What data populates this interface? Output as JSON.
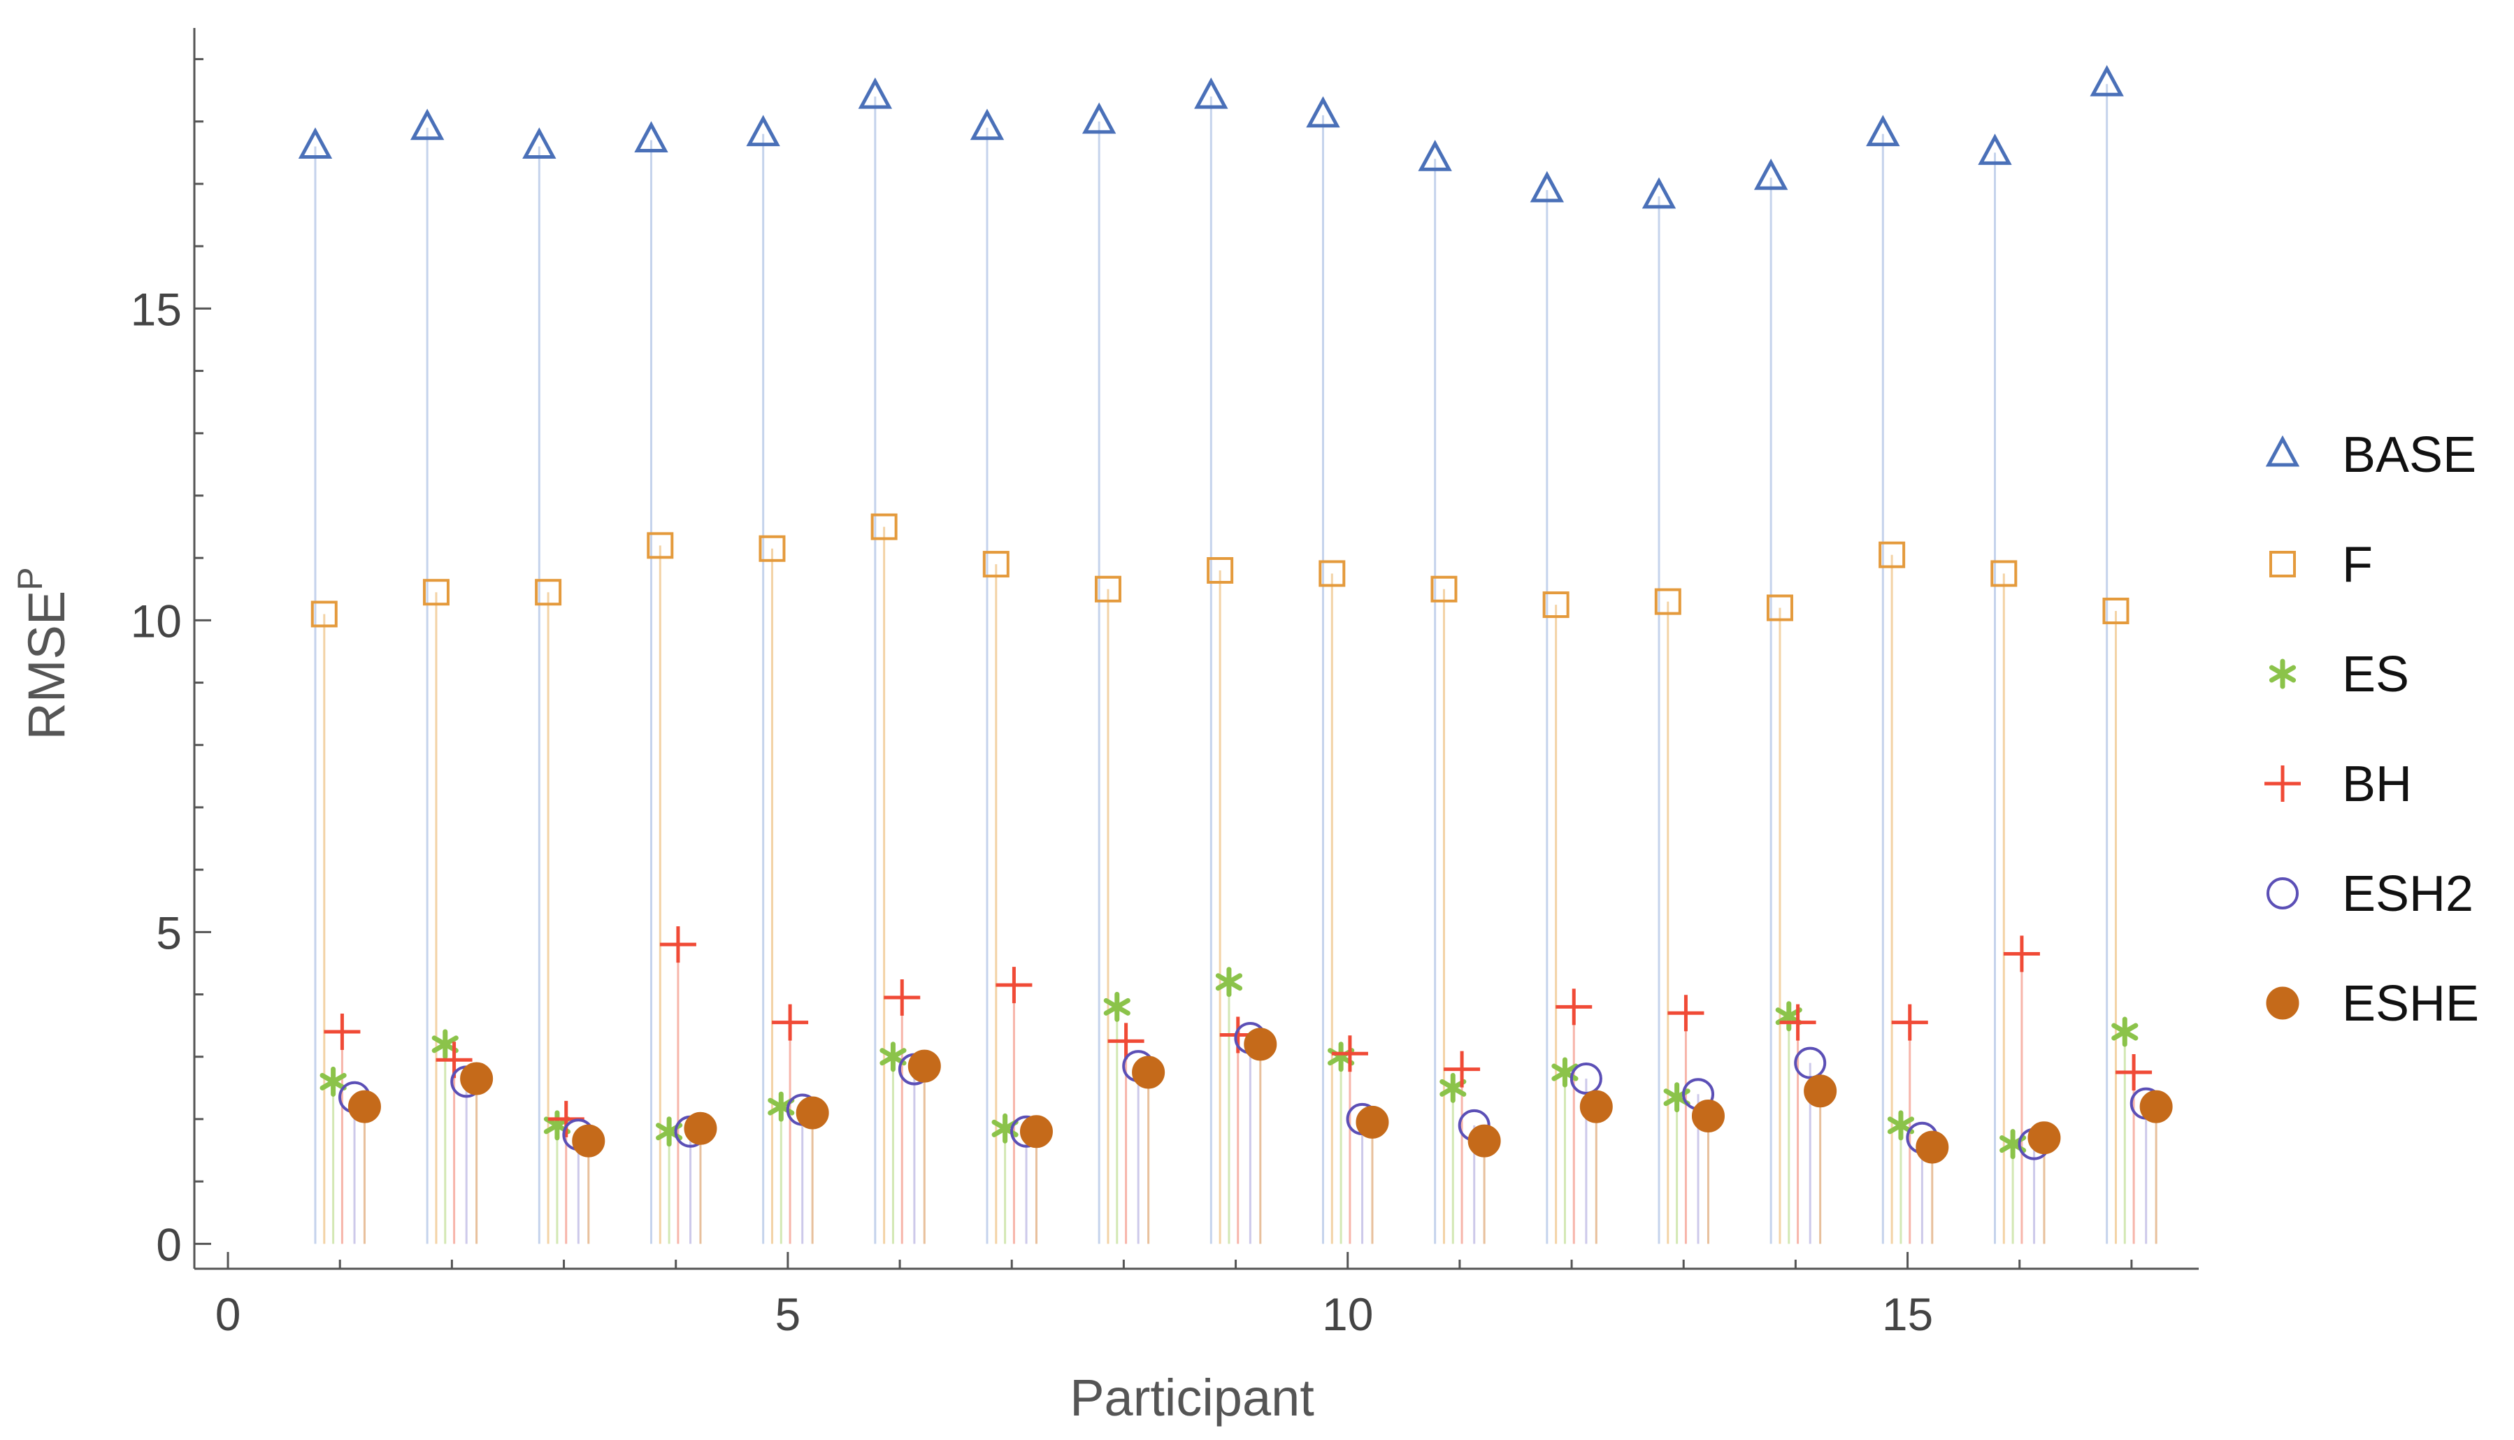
{
  "chart_data": {
    "type": "scatter",
    "style": "stem",
    "title": "",
    "xlabel": "Participant",
    "ylabel": "RMSE",
    "ylabel_superscript": "P",
    "xlim": [
      -0.3,
      17.6
    ],
    "ylim": [
      -0.4,
      19.5
    ],
    "xticks": [
      0,
      5,
      10,
      15
    ],
    "yticks": [
      0,
      5,
      10,
      15
    ],
    "grid": false,
    "legend_position": "right",
    "participants": [
      1,
      2,
      3,
      4,
      5,
      6,
      7,
      8,
      9,
      10,
      11,
      12,
      13,
      14,
      15,
      16,
      17
    ],
    "series": [
      {
        "name": "BASE",
        "marker": "triangle",
        "color": "#4a70b8",
        "stem_color": "#c5d3ec",
        "values": [
          17.6,
          17.9,
          17.6,
          17.7,
          17.8,
          18.4,
          17.9,
          18.0,
          18.4,
          18.1,
          17.4,
          16.9,
          16.8,
          17.1,
          17.8,
          17.5,
          18.6
        ]
      },
      {
        "name": "F",
        "marker": "square",
        "color": "#e49a3c",
        "stem_color": "#f3d3a6",
        "values": [
          10.1,
          10.45,
          10.45,
          11.2,
          11.15,
          11.5,
          10.9,
          10.5,
          10.8,
          10.75,
          10.5,
          10.25,
          10.3,
          10.2,
          11.05,
          10.75,
          10.15
        ]
      },
      {
        "name": "ES",
        "marker": "asterisk",
        "color": "#8bc34a",
        "stem_color": "#d3e8b4",
        "values": [
          2.6,
          3.2,
          1.9,
          1.8,
          2.2,
          3.0,
          1.85,
          3.8,
          4.2,
          3.0,
          2.5,
          2.75,
          2.35,
          3.65,
          1.9,
          1.6,
          3.4
        ]
      },
      {
        "name": "BH",
        "marker": "plus",
        "color": "#f04a36",
        "stem_color": "#f7b5aa",
        "values": [
          3.4,
          2.95,
          2.0,
          4.8,
          3.55,
          3.95,
          4.15,
          3.25,
          3.35,
          3.05,
          2.8,
          3.8,
          3.7,
          3.55,
          3.55,
          4.65,
          2.75
        ]
      },
      {
        "name": "ESH2",
        "marker": "circle-open",
        "color": "#5b4fb6",
        "stem_color": "#cdc9ea",
        "values": [
          2.35,
          2.6,
          1.75,
          1.8,
          2.15,
          2.8,
          1.8,
          2.85,
          3.3,
          2.0,
          1.9,
          2.65,
          2.4,
          2.9,
          1.7,
          1.6,
          2.25
        ]
      },
      {
        "name": "ESHE",
        "marker": "circle-filled",
        "color": "#c56a1a",
        "stem_color": "#e8c09c",
        "values": [
          2.2,
          2.65,
          1.65,
          1.85,
          2.1,
          2.85,
          1.8,
          2.75,
          3.2,
          1.95,
          1.65,
          2.2,
          2.05,
          2.45,
          1.55,
          1.7,
          2.2
        ]
      }
    ]
  }
}
